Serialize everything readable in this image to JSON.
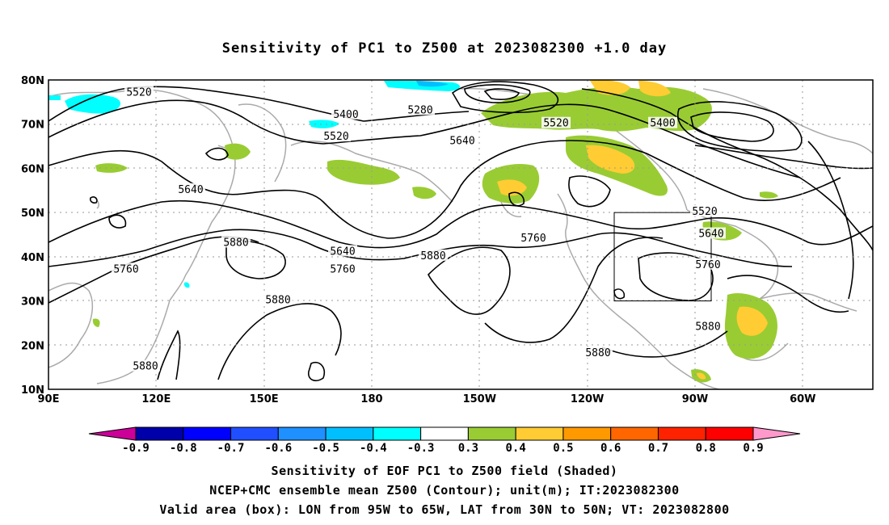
{
  "title": "Sensitivity of PC1 to Z500 at 2023082300 +1.0 day",
  "lat_labels": [
    "80N",
    "70N",
    "60N",
    "50N",
    "40N",
    "30N",
    "20N",
    "10N"
  ],
  "lon_labels": [
    "90E",
    "120E",
    "150E",
    "180",
    "150W",
    "120W",
    "90W",
    "60W"
  ],
  "colorbar": {
    "ticks": [
      "-0.9",
      "-0.8",
      "-0.7",
      "-0.6",
      "-0.5",
      "-0.4",
      "-0.3",
      "0.3",
      "0.4",
      "0.5",
      "0.6",
      "0.7",
      "0.8",
      "0.9"
    ],
    "colors": [
      "#cc0099",
      "#0000aa",
      "#0000ff",
      "#1f4fff",
      "#1e90ff",
      "#00bfff",
      "#00ffff",
      "#ffffff",
      "#99cc33",
      "#ffcc33",
      "#ff9900",
      "#ff6600",
      "#ff2200",
      "#ff0000",
      "#ff99cc"
    ]
  },
  "contours": {
    "labels": [
      {
        "text": "5520",
        "lon": 118,
        "lat": 77
      },
      {
        "text": "5400",
        "lon": -178,
        "lat": 72
      },
      {
        "text": "5280",
        "lon": -155,
        "lat": 73
      },
      {
        "text": "5520",
        "lon": -113,
        "lat": 70
      },
      {
        "text": "5400",
        "lon": -80,
        "lat": 70
      },
      {
        "text": "5520",
        "lon": 179,
        "lat": 67
      },
      {
        "text": "5640",
        "lon": -142,
        "lat": 66
      },
      {
        "text": "5640",
        "lon": 134,
        "lat": 55
      },
      {
        "text": "5880",
        "lon": 148,
        "lat": 43
      },
      {
        "text": "5640",
        "lon": -179,
        "lat": 41
      },
      {
        "text": "5760",
        "lon": -179,
        "lat": 37
      },
      {
        "text": "5880",
        "lon": -151,
        "lat": 40
      },
      {
        "text": "5760",
        "lon": -120,
        "lat": 44
      },
      {
        "text": "5520",
        "lon": -67,
        "lat": 50
      },
      {
        "text": "5640",
        "lon": -65,
        "lat": 45
      },
      {
        "text": "5760",
        "lon": -66,
        "lat": 38
      },
      {
        "text": "5760",
        "lon": 114,
        "lat": 37
      },
      {
        "text": "5880",
        "lon": 161,
        "lat": 30
      },
      {
        "text": "5880",
        "lon": -66,
        "lat": 24
      },
      {
        "text": "5880",
        "lon": -100,
        "lat": 18
      },
      {
        "text": "5880",
        "lon": 120,
        "lat": 15
      }
    ]
  },
  "box": {
    "lon_min": -95,
    "lon_max": -65,
    "lat_min": 30,
    "lat_max": 50
  },
  "captions": [
    "Sensitivity of EOF PC1 to Z500 field (Shaded)",
    "NCEP+CMC ensemble mean Z500 (Contour); unit(m); IT:2023082300",
    "Valid area (box): LON from 95W to 65W, LAT from 30N to 50N; VT: 2023082800"
  ]
}
